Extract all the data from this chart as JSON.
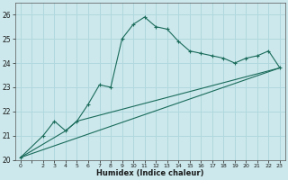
{
  "xlabel": "Humidex (Indice chaleur)",
  "bg_color": "#cce8ec",
  "grid_color": "#b0d8de",
  "line_color": "#1a6b5a",
  "xlim": [
    -0.5,
    23.5
  ],
  "ylim": [
    20,
    26.5
  ],
  "yticks": [
    20,
    21,
    22,
    23,
    24,
    25,
    26
  ],
  "xticks": [
    0,
    1,
    2,
    3,
    4,
    5,
    6,
    7,
    8,
    9,
    10,
    11,
    12,
    13,
    14,
    15,
    16,
    17,
    18,
    19,
    20,
    21,
    22,
    23
  ],
  "xtick_labels": [
    "0",
    "",
    "2",
    "3",
    "4",
    "5",
    "6",
    "7",
    "8",
    "9",
    "10",
    "11",
    "12",
    "13",
    "14",
    "15",
    "16",
    "17",
    "18",
    "19",
    "20",
    "21",
    "22",
    "23"
  ],
  "line1_x": [
    0,
    2,
    3,
    4,
    5,
    6,
    7,
    8,
    9,
    10,
    11,
    12,
    13,
    14,
    15,
    16,
    17,
    18,
    19,
    20,
    21,
    22,
    23
  ],
  "line1_y": [
    20.1,
    21.0,
    21.6,
    21.2,
    21.6,
    22.3,
    23.1,
    23.0,
    25.0,
    25.6,
    25.9,
    25.5,
    25.4,
    24.9,
    24.5,
    24.4,
    24.3,
    24.2,
    24.0,
    24.2,
    24.3,
    24.5,
    23.8
  ],
  "line2_x": [
    0,
    23
  ],
  "line2_y": [
    20.1,
    23.8
  ],
  "line3_x": [
    0,
    4,
    5,
    23
  ],
  "line3_y": [
    20.1,
    21.2,
    21.6,
    23.8
  ]
}
